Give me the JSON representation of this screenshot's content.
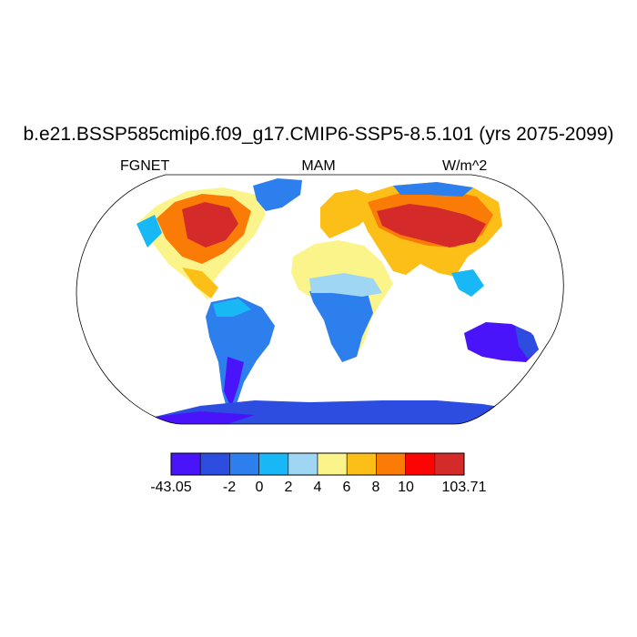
{
  "title": "b.e21.BSSP585cmip6.f09_g17.CMIP6-SSP5-8.5.101 (yrs 2075-2099)",
  "left_label": "FGNET",
  "center_label": "MAM",
  "right_label": "W/m^2",
  "colorbar": {
    "colors": [
      "#4a14fa",
      "#2c4de0",
      "#2e7fee",
      "#17b8f5",
      "#9fd6f3",
      "#fbf48a",
      "#fbbf18",
      "#fb7b07",
      "#fb0404",
      "#d52a2a"
    ],
    "labels": [
      "-43.05",
      "",
      "-2",
      "0",
      "2",
      "4",
      "6",
      "8",
      "10",
      "",
      "103.71"
    ]
  }
}
